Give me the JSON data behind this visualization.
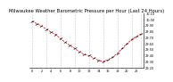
{
  "title": "Milwaukee Weather Barometric Pressure per Hour (Last 24 Hours)",
  "hours": [
    0,
    1,
    2,
    3,
    4,
    5,
    6,
    7,
    8,
    9,
    10,
    11,
    12,
    13,
    14,
    15,
    16,
    17,
    18,
    19,
    20,
    21,
    22,
    23
  ],
  "pressure": [
    29.97,
    29.93,
    29.89,
    29.84,
    29.79,
    29.75,
    29.68,
    29.62,
    29.57,
    29.52,
    29.46,
    29.42,
    29.4,
    29.36,
    29.32,
    29.3,
    29.33,
    29.38,
    29.44,
    29.52,
    29.6,
    29.67,
    29.72,
    29.76
  ],
  "line_color": "#cc0000",
  "marker_color": "#000000",
  "bg_color": "#ffffff",
  "grid_color": "#999999",
  "ylim_min": 29.2,
  "ylim_max": 30.1,
  "ytick_values": [
    29.2,
    29.3,
    29.4,
    29.5,
    29.6,
    29.7,
    29.8,
    29.9,
    30.0,
    30.1
  ],
  "title_fontsize": 3.8,
  "tick_fontsize": 2.5,
  "grid_hours": [
    0,
    3,
    6,
    9,
    12,
    15,
    18,
    21,
    23
  ]
}
